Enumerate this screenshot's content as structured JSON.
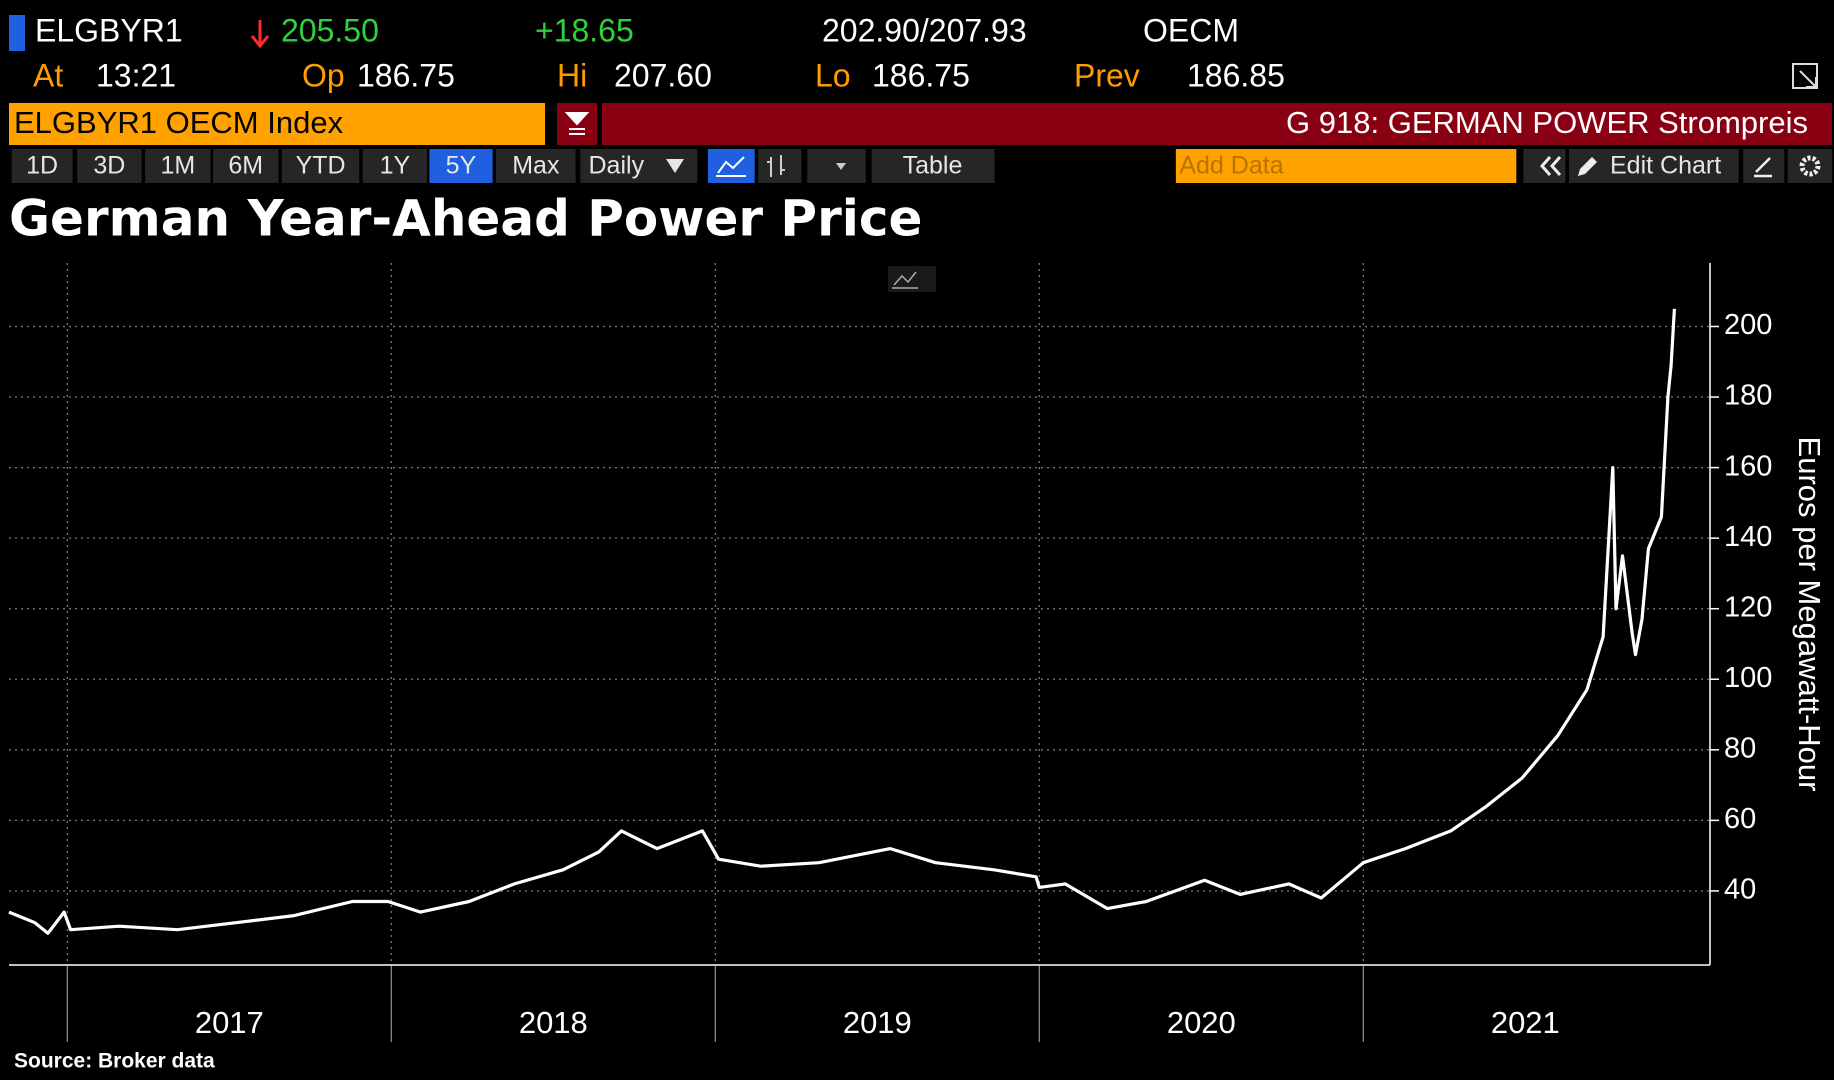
{
  "header": {
    "ticker": "ELGBYR1",
    "last": "205.50",
    "change": "+18.65",
    "bid_ask": "202.90/207.93",
    "exchange": "OECM",
    "at_label": "At",
    "time": "13:21",
    "open_label": "Op",
    "open": "186.75",
    "high_label": "Hi",
    "high": "207.60",
    "low_label": "Lo",
    "low": "186.75",
    "prev_label": "Prev",
    "prev": "186.85"
  },
  "toolbar": {
    "security": "ELGBYR1 OECM Index",
    "page": "G 918: GERMAN POWER Strompreis",
    "ranges": [
      "1D",
      "3D",
      "1M",
      "6M",
      "YTD",
      "1Y",
      "5Y",
      "Max"
    ],
    "active_range": "5Y",
    "frequency": "Daily",
    "table": "Table",
    "add_data": "Add Data",
    "edit_chart": "Edit Chart"
  },
  "chart_data": {
    "type": "line",
    "title": "German Year-Ahead Power Price",
    "y_label": "Euros per Megawatt-Hour",
    "source": "Source: Broker data",
    "color": "#ffffff",
    "x": [
      2016.82,
      2016.9,
      2016.94,
      2016.99,
      2017.01,
      2017.16,
      2017.34,
      2017.52,
      2017.7,
      2017.88,
      2017.99,
      2018.09,
      2018.24,
      2018.38,
      2018.53,
      2018.64,
      2018.71,
      2018.82,
      2018.96,
      2019.01,
      2019.14,
      2019.32,
      2019.54,
      2019.68,
      2019.86,
      2019.99,
      2020.0,
      2020.08,
      2020.21,
      2020.33,
      2020.51,
      2020.62,
      2020.77,
      2020.87,
      2021.0,
      2021.13,
      2021.27,
      2021.38,
      2021.49,
      2021.6,
      2021.69,
      2021.74,
      2021.77,
      2021.78,
      2021.8,
      2021.83,
      2021.84,
      2021.86,
      2021.88,
      2021.92,
      2021.94,
      2021.95,
      2021.96
    ],
    "values": [
      34,
      31,
      28,
      34,
      29,
      30,
      29,
      31,
      33,
      37,
      37,
      34,
      37,
      42,
      46,
      51,
      57,
      52,
      57,
      49,
      47,
      48,
      52,
      48,
      46,
      44,
      41,
      42,
      35,
      37,
      43,
      39,
      42,
      38,
      48,
      52,
      57,
      64,
      72,
      84,
      97,
      112,
      160,
      120,
      135,
      113,
      107,
      117,
      137,
      146,
      180,
      189,
      205
    ],
    "xlim": [
      2016.82,
      2022.07
    ],
    "xticks": [
      2017,
      2018,
      2019,
      2020,
      2021
    ],
    "ylim": [
      19,
      218
    ],
    "yticks": [
      40,
      60,
      80,
      100,
      120,
      140,
      160,
      180,
      200
    ],
    "grid": true
  }
}
